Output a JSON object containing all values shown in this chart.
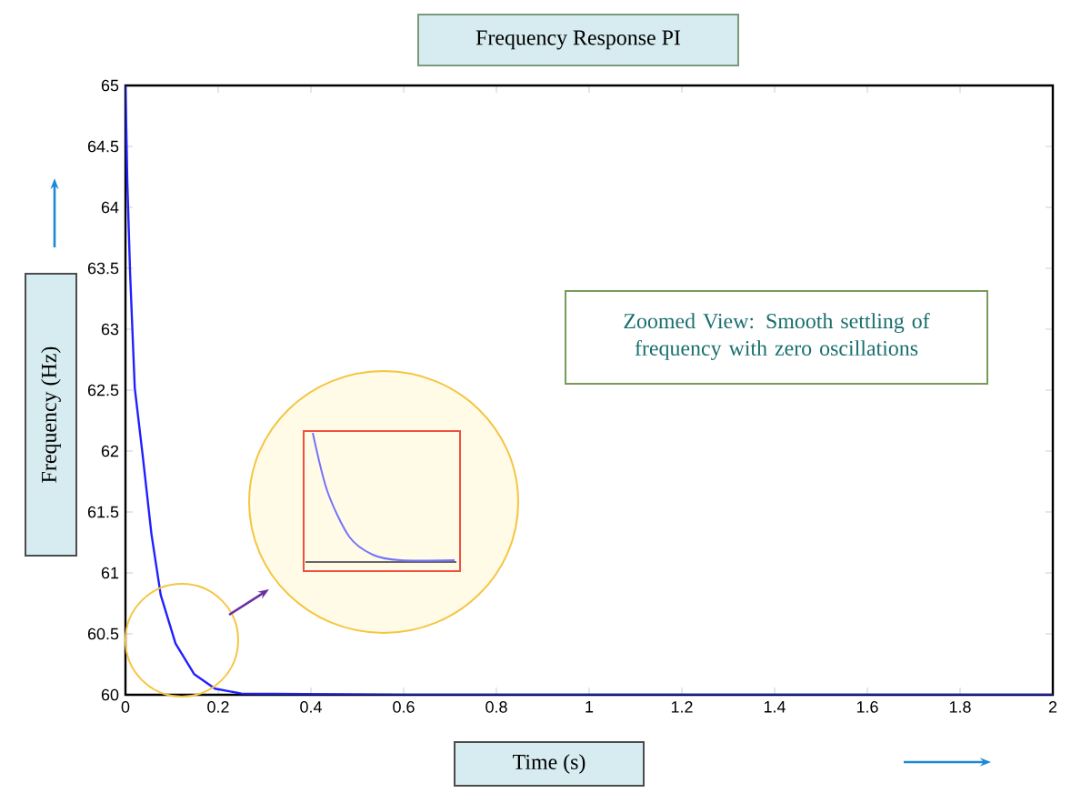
{
  "chart_data": {
    "type": "line",
    "title": "Frequency Response PI",
    "xlabel": "Time (s)",
    "ylabel": "Frequency (Hz)",
    "annotations": [
      "Zoomed View: Smooth settling of frequency with zero oscillations"
    ],
    "x": [
      0,
      0.004,
      0.01,
      0.02,
      0.037,
      0.056,
      0.076,
      0.108,
      0.148,
      0.193,
      0.25,
      0.6,
      1.0,
      1.5,
      2.0
    ],
    "series": [
      {
        "color": "#2020ff",
        "values": [
          65,
          64.21,
          63.46,
          62.52,
          61.97,
          61.32,
          60.82,
          60.42,
          60.17,
          60.05,
          60.01,
          60,
          60,
          60,
          60
        ]
      }
    ],
    "xlim": [
      0,
      2
    ],
    "ylim": [
      60,
      65
    ],
    "xticks": [
      0,
      0.2,
      0.4,
      0.6,
      0.8,
      1,
      1.2,
      1.4,
      1.6,
      1.8,
      2
    ],
    "yticks": [
      60,
      60.5,
      61,
      61.5,
      62,
      62.5,
      63,
      63.5,
      64,
      64.5,
      65
    ]
  }
}
